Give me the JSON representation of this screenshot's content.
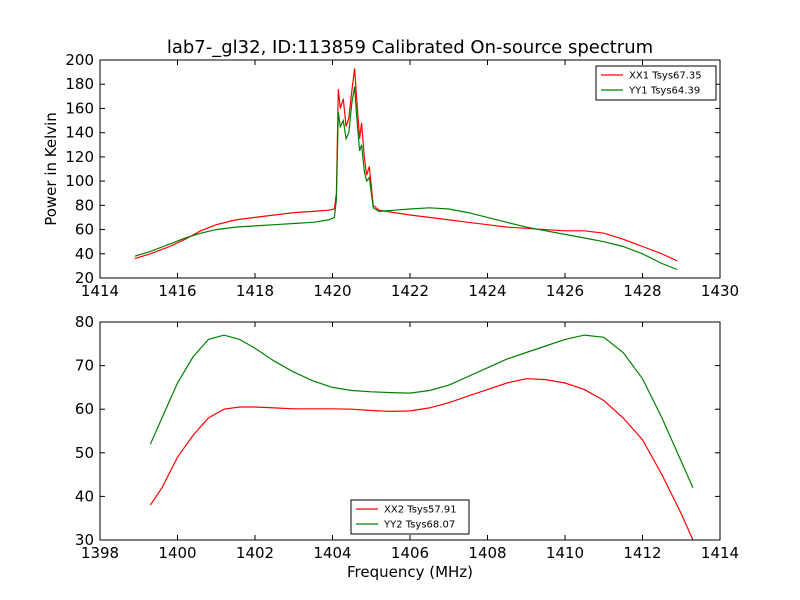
{
  "figure": {
    "title": "lab7-_gl32, ID:113859 Calibrated On-source spectrum",
    "ylabel": "Power in Kelvin",
    "xlabel": "Frequency (MHz)"
  },
  "chart_data": [
    {
      "type": "line",
      "title": "lab7-_gl32, ID:113859 Calibrated On-source spectrum",
      "ylabel": "Power in Kelvin",
      "xlabel": "",
      "xlim": [
        1414,
        1430
      ],
      "ylim": [
        20,
        200
      ],
      "xticks": [
        "1414",
        "1416",
        "1418",
        "1420",
        "1422",
        "1424",
        "1426",
        "1428",
        "1430"
      ],
      "yticks": [
        "20",
        "40",
        "60",
        "80",
        "100",
        "120",
        "140",
        "160",
        "180",
        "200"
      ],
      "legend": "top-right",
      "grid": false,
      "series": [
        {
          "name": "XX1 Tsys67.35",
          "color": "#ff0000",
          "points": [
            [
              1414.9,
              36
            ],
            [
              1415.3,
              40
            ],
            [
              1415.8,
              46
            ],
            [
              1416.2,
              52
            ],
            [
              1416.6,
              59
            ],
            [
              1417.0,
              64
            ],
            [
              1417.5,
              68
            ],
            [
              1418.0,
              70
            ],
            [
              1418.5,
              72
            ],
            [
              1419.0,
              74
            ],
            [
              1419.5,
              75
            ],
            [
              1419.9,
              76
            ],
            [
              1420.05,
              77
            ],
            [
              1420.1,
              90
            ],
            [
              1420.15,
              176
            ],
            [
              1420.2,
              160
            ],
            [
              1420.28,
              168
            ],
            [
              1420.35,
              145
            ],
            [
              1420.42,
              152
            ],
            [
              1420.5,
              175
            ],
            [
              1420.57,
              193
            ],
            [
              1420.62,
              170
            ],
            [
              1420.7,
              135
            ],
            [
              1420.75,
              148
            ],
            [
              1420.82,
              120
            ],
            [
              1420.88,
              105
            ],
            [
              1420.95,
              112
            ],
            [
              1421.05,
              80
            ],
            [
              1421.2,
              76
            ],
            [
              1421.6,
              74
            ],
            [
              1422.0,
              72
            ],
            [
              1422.5,
              70
            ],
            [
              1423.0,
              68
            ],
            [
              1423.5,
              66
            ],
            [
              1424.0,
              64
            ],
            [
              1424.5,
              62
            ],
            [
              1425.0,
              61
            ],
            [
              1425.5,
              60
            ],
            [
              1426.0,
              59
            ],
            [
              1426.5,
              59
            ],
            [
              1427.0,
              57
            ],
            [
              1427.5,
              52
            ],
            [
              1428.0,
              46
            ],
            [
              1428.5,
              40
            ],
            [
              1428.9,
              34
            ]
          ]
        },
        {
          "name": "YY1 Tsys64.39",
          "color": "#008000",
          "points": [
            [
              1414.9,
              38
            ],
            [
              1415.3,
              42
            ],
            [
              1415.8,
              48
            ],
            [
              1416.2,
              53
            ],
            [
              1416.6,
              57
            ],
            [
              1417.0,
              60
            ],
            [
              1417.5,
              62
            ],
            [
              1418.0,
              63
            ],
            [
              1418.5,
              64
            ],
            [
              1419.0,
              65
            ],
            [
              1419.5,
              66
            ],
            [
              1419.9,
              68
            ],
            [
              1420.05,
              70
            ],
            [
              1420.1,
              85
            ],
            [
              1420.15,
              157
            ],
            [
              1420.2,
              145
            ],
            [
              1420.28,
              150
            ],
            [
              1420.35,
              135
            ],
            [
              1420.42,
              140
            ],
            [
              1420.5,
              165
            ],
            [
              1420.57,
              178
            ],
            [
              1420.62,
              155
            ],
            [
              1420.7,
              125
            ],
            [
              1420.75,
              130
            ],
            [
              1420.82,
              108
            ],
            [
              1420.88,
              100
            ],
            [
              1420.95,
              103
            ],
            [
              1421.05,
              78
            ],
            [
              1421.2,
              75
            ],
            [
              1421.6,
              76
            ],
            [
              1422.0,
              77
            ],
            [
              1422.5,
              78
            ],
            [
              1423.0,
              77
            ],
            [
              1423.5,
              74
            ],
            [
              1424.0,
              70
            ],
            [
              1424.5,
              66
            ],
            [
              1425.0,
              62
            ],
            [
              1425.5,
              59
            ],
            [
              1426.0,
              56
            ],
            [
              1426.5,
              53
            ],
            [
              1427.0,
              50
            ],
            [
              1427.5,
              46
            ],
            [
              1428.0,
              40
            ],
            [
              1428.5,
              32
            ],
            [
              1428.9,
              27
            ]
          ]
        }
      ]
    },
    {
      "type": "line",
      "title": "",
      "ylabel": "",
      "xlabel": "Frequency (MHz)",
      "xlim": [
        1398,
        1414
      ],
      "ylim": [
        30,
        80
      ],
      "xticks": [
        "1398",
        "1400",
        "1402",
        "1404",
        "1406",
        "1408",
        "1410",
        "1412",
        "1414"
      ],
      "yticks": [
        "30",
        "40",
        "50",
        "60",
        "70",
        "80"
      ],
      "legend": "bottom-center",
      "grid": false,
      "series": [
        {
          "name": "XX2 Tsys57.91",
          "color": "#ff0000",
          "points": [
            [
              1399.3,
              38
            ],
            [
              1399.6,
              42
            ],
            [
              1400.0,
              49
            ],
            [
              1400.4,
              54
            ],
            [
              1400.8,
              58
            ],
            [
              1401.2,
              60
            ],
            [
              1401.6,
              60.5
            ],
            [
              1402.0,
              60.5
            ],
            [
              1402.5,
              60.3
            ],
            [
              1403.0,
              60.1
            ],
            [
              1403.5,
              60.1
            ],
            [
              1404.0,
              60.1
            ],
            [
              1404.5,
              60
            ],
            [
              1405.0,
              59.7
            ],
            [
              1405.5,
              59.5
            ],
            [
              1406.0,
              59.6
            ],
            [
              1406.5,
              60.3
            ],
            [
              1407.0,
              61.5
            ],
            [
              1407.5,
              63
            ],
            [
              1408.0,
              64.5
            ],
            [
              1408.5,
              66
            ],
            [
              1409.0,
              67
            ],
            [
              1409.5,
              66.8
            ],
            [
              1410.0,
              66
            ],
            [
              1410.5,
              64.5
            ],
            [
              1411.0,
              62
            ],
            [
              1411.5,
              58
            ],
            [
              1412.0,
              53
            ],
            [
              1412.5,
              45
            ],
            [
              1413.0,
              36
            ],
            [
              1413.3,
              30
            ]
          ]
        },
        {
          "name": "YY2 Tsys68.07",
          "color": "#008000",
          "points": [
            [
              1399.3,
              52
            ],
            [
              1399.6,
              58
            ],
            [
              1400.0,
              66
            ],
            [
              1400.4,
              72
            ],
            [
              1400.8,
              76
            ],
            [
              1401.2,
              77
            ],
            [
              1401.6,
              76
            ],
            [
              1402.0,
              74
            ],
            [
              1402.5,
              71
            ],
            [
              1403.0,
              68.5
            ],
            [
              1403.5,
              66.5
            ],
            [
              1404.0,
              65
            ],
            [
              1404.5,
              64.3
            ],
            [
              1405.0,
              64
            ],
            [
              1405.5,
              63.8
            ],
            [
              1406.0,
              63.7
            ],
            [
              1406.5,
              64.3
            ],
            [
              1407.0,
              65.5
            ],
            [
              1407.5,
              67.5
            ],
            [
              1408.0,
              69.5
            ],
            [
              1408.5,
              71.5
            ],
            [
              1409.0,
              73
            ],
            [
              1409.5,
              74.5
            ],
            [
              1410.0,
              76
            ],
            [
              1410.5,
              77
            ],
            [
              1411.0,
              76.5
            ],
            [
              1411.5,
              73
            ],
            [
              1412.0,
              67
            ],
            [
              1412.5,
              58
            ],
            [
              1413.0,
              48
            ],
            [
              1413.3,
              42
            ]
          ]
        }
      ]
    }
  ]
}
